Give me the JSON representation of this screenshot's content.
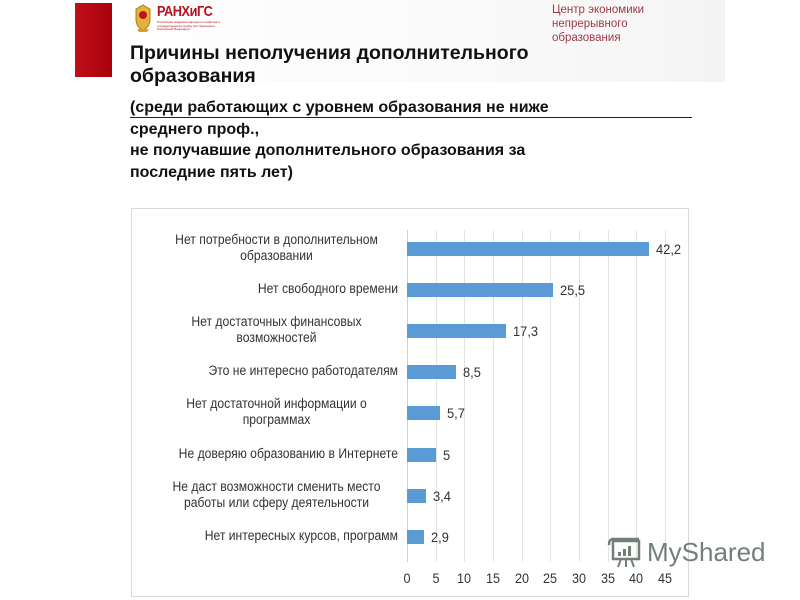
{
  "header": {
    "logo_name": "РАНХиГС",
    "logo_subtext": "Российская академия народного хозяйства и государственной службы при Президенте Российской Федерации",
    "center_label_lines": [
      "Центр экономики",
      "непрерывного",
      "образования"
    ],
    "brand_color": "#b3121d"
  },
  "title": {
    "line1": "Причины неполучения дополнительного",
    "line2": "образования"
  },
  "subtitle": {
    "line1": "(среди работающих с уровнем образования не ниже",
    "line2": "среднего проф.,",
    "line3": "не получавшие дополнительного образования за",
    "line4": "последние пять лет)"
  },
  "chart_data": {
    "type": "bar",
    "orientation": "horizontal",
    "title": "Причины неполучения дополнительного образования",
    "xlabel": "",
    "ylabel": "",
    "xlim": [
      0,
      45
    ],
    "x_ticks": [
      "0",
      "5",
      "10",
      "15",
      "20",
      "25",
      "30",
      "35",
      "40",
      "45"
    ],
    "grid": true,
    "legend": null,
    "bar_color": "#5b9bd5",
    "categories": [
      "Нет потребности в дополнительном образовании",
      "Нет свободного времени",
      "Нет достаточных финансовых возможностей",
      "Это не интересно работодателям",
      "Нет достаточной информации о программах",
      "Не доверяю образованию в Интернете",
      "Не даст возможности сменить место работы или сферу деятельности",
      "Нет интересных курсов, программ"
    ],
    "values": [
      42.2,
      25.5,
      17.3,
      8.5,
      5.7,
      5,
      3.4,
      2.9
    ],
    "value_labels": [
      "42,2",
      "25,5",
      "17,3",
      "8,5",
      "5,7",
      "5",
      "3,4",
      "2,9"
    ]
  },
  "chart_labels": [
    [
      "Нет потребности в дополнительном",
      "образовании"
    ],
    [
      "Нет свободного времени"
    ],
    [
      "Нет достаточных финансовых",
      "возможностей"
    ],
    [
      "Это не интересно работодателям"
    ],
    [
      "Нет достаточной информации о",
      "программах"
    ],
    [
      "Не доверяю образованию в Интернете"
    ],
    [
      "Не даст возможности сменить место",
      "работы или  сферу деятельности"
    ],
    [
      "Нет интересных курсов, программ"
    ]
  ],
  "watermark": {
    "text": "MyShared"
  }
}
